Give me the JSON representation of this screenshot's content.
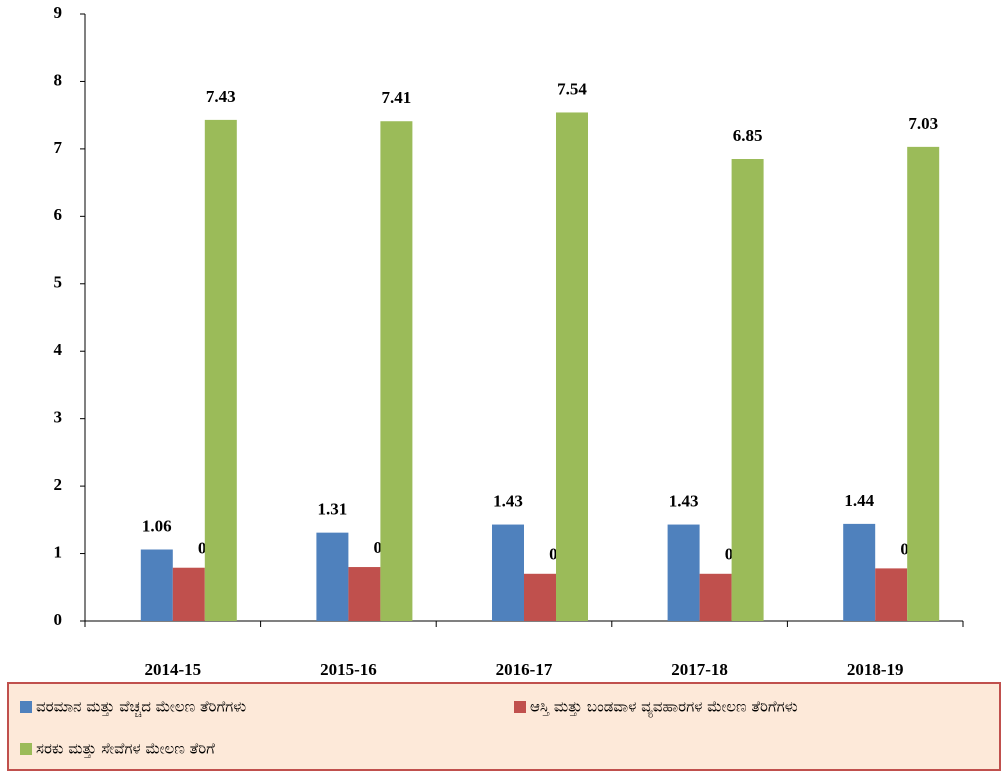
{
  "chart_data": {
    "type": "bar",
    "categories": [
      "2014-15",
      "2015-16",
      "2016-17",
      "2017-18",
      "2018-19"
    ],
    "series": [
      {
        "name": "ವರಮಾನ ಮತ್ತು ವೆಚ್ಚದ ಮೇಲಣ  ತೆರಿಗೆಗಳು",
        "color": "#4f81bd",
        "values": [
          1.06,
          1.31,
          1.43,
          1.43,
          1.44
        ],
        "value_labels": [
          "1.06",
          "1.31",
          "1.43",
          "1.43",
          "1.44"
        ]
      },
      {
        "name": "ಆಸ್ತಿ ಮತ್ತು ಬಂಡವಾಳ ವ್ಯವಹಾರಗಳ ಮೇಲಣ ತೆರಿಗೆಗಳು",
        "color": "#c0504d",
        "values": [
          0.79,
          0.8,
          0.7,
          0.7,
          0.78
        ],
        "value_labels": [
          "0.79",
          "0.80",
          "0.70",
          "0.70",
          "0.78"
        ]
      },
      {
        "name": "ಸರಕು ಮತ್ತು ಸೇವೆಗಳ ಮೇಲಣ ತೆರಿಗೆ",
        "color": "#9bbb59",
        "values": [
          7.43,
          7.41,
          7.54,
          6.85,
          7.03
        ],
        "value_labels": [
          "7.43",
          "7.41",
          "7.54",
          "6.85",
          "7.03"
        ]
      }
    ],
    "ylim": [
      0,
      9
    ],
    "yticks": [
      0,
      1,
      2,
      3,
      4,
      5,
      6,
      7,
      8,
      9
    ],
    "grid": false,
    "legend": "bottom"
  }
}
